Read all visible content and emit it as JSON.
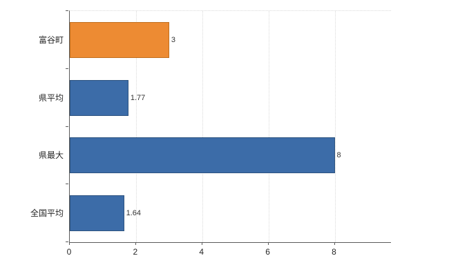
{
  "chart_data": {
    "type": "bar",
    "orientation": "horizontal",
    "title": "",
    "xlabel": "",
    "ylabel": "",
    "categories": [
      "富谷町",
      "県平均",
      "県最大",
      "全国平均"
    ],
    "values": [
      3,
      1.77,
      8,
      1.64
    ],
    "value_labels": [
      "3",
      "1.77",
      "8",
      "1.64"
    ],
    "bar_colors": [
      "#ED8B33",
      "#3C6CA8",
      "#3C6CA8",
      "#3C6CA8"
    ],
    "bar_border_colors": [
      "#c06f1f",
      "#2d537f",
      "#2d537f",
      "#2d537f"
    ],
    "x_ticks": [
      0,
      2,
      4,
      6,
      8
    ],
    "x_tick_labels": [
      "0",
      "2",
      "4",
      "6",
      "8"
    ],
    "xlim": [
      0,
      9.7
    ],
    "grid": "vertical-dotted",
    "legend": "none"
  },
  "colors": {
    "background": "#ffffff",
    "axis": "#595959",
    "grid": "#d9d9d9",
    "text": "#262626",
    "accent_orange": "#ED8B33",
    "accent_blue": "#3C6CA8"
  }
}
